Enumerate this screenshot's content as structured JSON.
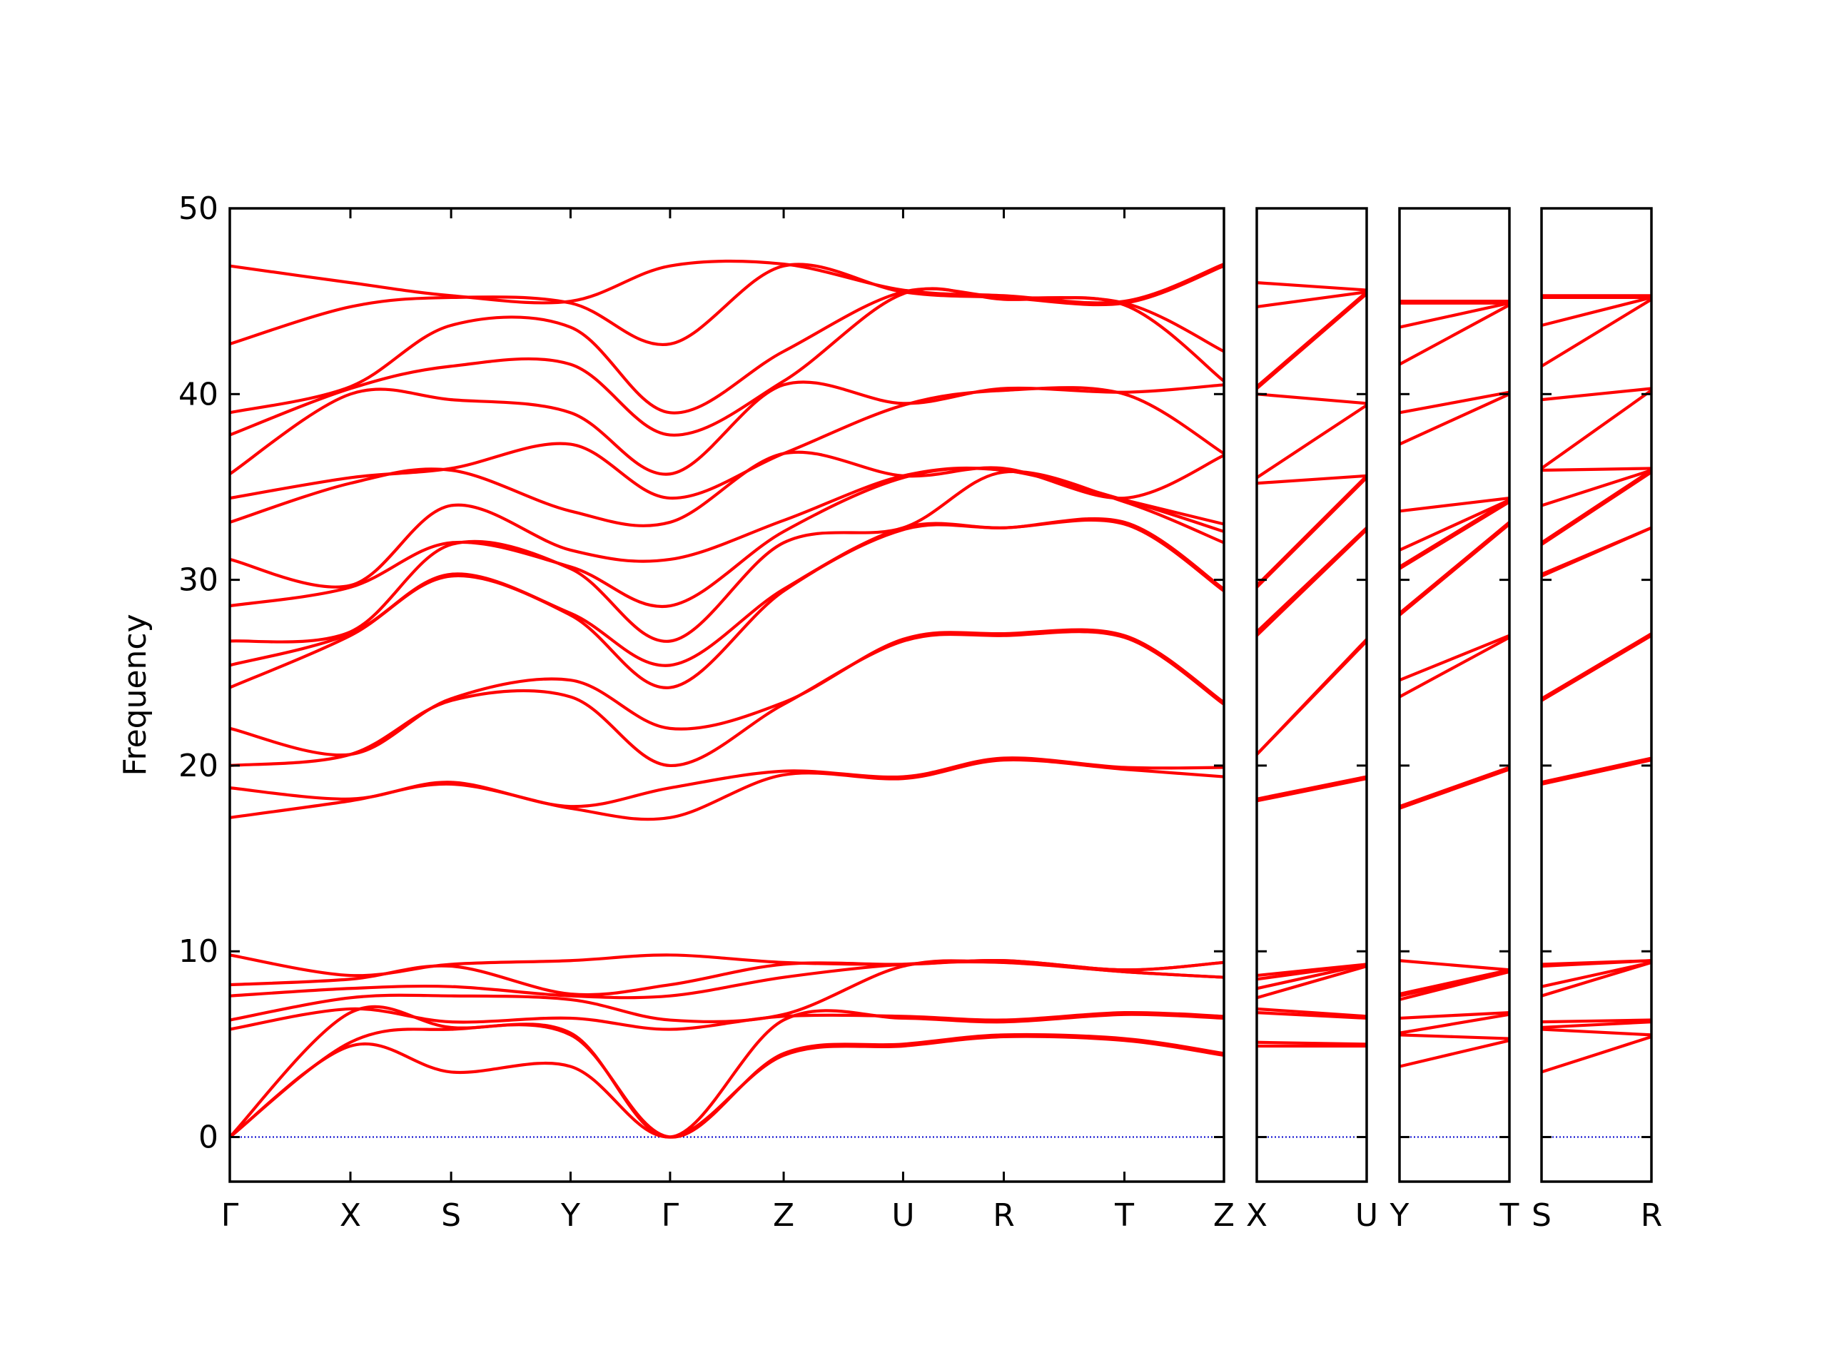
{
  "chart_data": [
    {
      "type": "line",
      "ylabel": "Frequency",
      "color": "#ff0000",
      "reference_line": {
        "value": 0,
        "color": "#0000cc"
      },
      "x": [
        0,
        1.03,
        1.89,
        2.91,
        3.76,
        4.73,
        5.75,
        6.61,
        7.64,
        8.49
      ],
      "xlim": [
        0,
        8.49
      ],
      "xticks": [
        {
          "value": 0,
          "label": "Γ"
        },
        {
          "value": 1.03,
          "label": "X"
        },
        {
          "value": 1.89,
          "label": "S"
        },
        {
          "value": 2.91,
          "label": "Y"
        },
        {
          "value": 3.76,
          "label": "Γ"
        },
        {
          "value": 4.73,
          "label": "Z"
        },
        {
          "value": 5.75,
          "label": "U"
        },
        {
          "value": 6.61,
          "label": "R"
        },
        {
          "value": 7.64,
          "label": "T"
        },
        {
          "value": 8.49,
          "label": "Z"
        }
      ],
      "ylim": [
        -2.4,
        50
      ],
      "yticks": [
        0,
        10,
        20,
        30,
        40,
        50
      ],
      "series": [
        {
          "values": [
            0,
            4.9,
            3.5,
            3.8,
            0,
            4.4,
            4.9,
            5.4,
            5.2,
            4.4
          ]
        },
        {
          "values": [
            0,
            5.1,
            5.8,
            5.5,
            0,
            4.5,
            5.0,
            5.5,
            5.3,
            4.5
          ]
        },
        {
          "values": [
            0,
            6.7,
            5.9,
            5.6,
            0,
            6.3,
            6.4,
            6.2,
            6.6,
            6.4
          ]
        },
        {
          "values": [
            5.8,
            6.9,
            6.2,
            6.4,
            5.8,
            6.5,
            6.5,
            6.3,
            6.7,
            6.5
          ]
        },
        {
          "values": [
            6.3,
            7.5,
            7.6,
            7.4,
            6.3,
            6.6,
            9.2,
            9.4,
            8.9,
            8.6
          ]
        },
        {
          "values": [
            7.6,
            8.0,
            8.1,
            7.6,
            7.6,
            8.6,
            9.3,
            9.4,
            8.9,
            8.6
          ]
        },
        {
          "values": [
            8.2,
            8.5,
            9.2,
            7.7,
            8.2,
            9.3,
            9.3,
            9.5,
            9.0,
            9.4
          ]
        },
        {
          "values": [
            9.8,
            8.7,
            9.3,
            9.5,
            9.8,
            9.4,
            9.3,
            9.5,
            9.0,
            9.4
          ]
        },
        {
          "values": [
            17.2,
            18.1,
            19.0,
            17.7,
            17.2,
            19.5,
            19.3,
            20.3,
            19.8,
            19.4
          ]
        },
        {
          "values": [
            18.8,
            18.2,
            19.1,
            17.8,
            18.8,
            19.7,
            19.4,
            20.4,
            19.9,
            19.9
          ]
        },
        {
          "values": [
            20.0,
            20.6,
            23.5,
            23.7,
            20.0,
            23.3,
            26.7,
            27.0,
            26.9,
            23.3
          ]
        },
        {
          "values": [
            22.0,
            20.6,
            23.6,
            24.6,
            22.0,
            23.4,
            26.8,
            27.1,
            27.0,
            23.4
          ]
        },
        {
          "values": [
            24.2,
            27.0,
            30.2,
            28.1,
            24.2,
            29.4,
            32.7,
            32.8,
            33.0,
            29.4
          ]
        },
        {
          "values": [
            25.4,
            27.1,
            30.3,
            28.2,
            25.4,
            29.5,
            32.8,
            32.8,
            33.1,
            29.5
          ]
        },
        {
          "values": [
            26.7,
            27.2,
            31.9,
            30.6,
            26.7,
            32.0,
            32.8,
            35.8,
            34.2,
            32.0
          ]
        },
        {
          "values": [
            28.6,
            29.6,
            32.0,
            30.7,
            28.6,
            32.6,
            35.5,
            35.9,
            34.3,
            32.6
          ]
        },
        {
          "values": [
            31.1,
            29.7,
            34.0,
            31.6,
            31.1,
            33.2,
            35.6,
            35.9,
            34.3,
            33.0
          ]
        },
        {
          "values": [
            33.1,
            35.2,
            35.9,
            33.7,
            33.1,
            36.8,
            35.6,
            36.0,
            34.4,
            36.7
          ]
        },
        {
          "values": [
            34.4,
            35.5,
            36.0,
            37.3,
            34.4,
            36.8,
            39.4,
            40.2,
            40.0,
            36.8
          ]
        },
        {
          "values": [
            35.7,
            40.0,
            39.7,
            39.0,
            35.7,
            40.5,
            39.5,
            40.3,
            40.1,
            40.5
          ]
        },
        {
          "values": [
            37.8,
            40.3,
            41.5,
            41.6,
            37.8,
            40.7,
            45.4,
            45.1,
            44.8,
            40.7
          ]
        },
        {
          "values": [
            39.0,
            40.4,
            43.7,
            43.6,
            39.0,
            42.3,
            45.5,
            45.2,
            44.9,
            42.3
          ]
        },
        {
          "values": [
            42.7,
            44.7,
            45.2,
            44.9,
            42.7,
            46.9,
            45.5,
            45.2,
            44.9,
            46.9
          ]
        },
        {
          "values": [
            46.9,
            46.0,
            45.3,
            45.0,
            46.9,
            47.0,
            45.6,
            45.3,
            45.0,
            47.0
          ]
        }
      ]
    },
    {
      "type": "line",
      "color": "#ff0000",
      "reference_line": {
        "value": 0,
        "color": "#0000cc"
      },
      "x": [
        0,
        1
      ],
      "xlim": [
        0,
        1
      ],
      "xticks": [
        {
          "value": 0,
          "label": "X"
        },
        {
          "value": 1,
          "label": "U"
        }
      ],
      "ylim": [
        -2.4,
        50
      ],
      "series": [
        {
          "values": [
            4.9,
            4.9
          ]
        },
        {
          "values": [
            5.1,
            5.0
          ]
        },
        {
          "values": [
            6.7,
            6.4
          ]
        },
        {
          "values": [
            6.9,
            6.5
          ]
        },
        {
          "values": [
            7.5,
            9.2
          ]
        },
        {
          "values": [
            8.0,
            9.3
          ]
        },
        {
          "values": [
            8.5,
            9.3
          ]
        },
        {
          "values": [
            8.7,
            9.3
          ]
        },
        {
          "values": [
            18.1,
            19.3
          ]
        },
        {
          "values": [
            18.2,
            19.4
          ]
        },
        {
          "values": [
            20.6,
            26.7
          ]
        },
        {
          "values": [
            20.6,
            26.8
          ]
        },
        {
          "values": [
            27.0,
            32.7
          ]
        },
        {
          "values": [
            27.1,
            32.8
          ]
        },
        {
          "values": [
            27.2,
            32.8
          ]
        },
        {
          "values": [
            29.6,
            35.5
          ]
        },
        {
          "values": [
            29.7,
            35.6
          ]
        },
        {
          "values": [
            35.2,
            35.6
          ]
        },
        {
          "values": [
            35.5,
            39.4
          ]
        },
        {
          "values": [
            40.0,
            39.5
          ]
        },
        {
          "values": [
            40.3,
            45.4
          ]
        },
        {
          "values": [
            40.4,
            45.5
          ]
        },
        {
          "values": [
            44.7,
            45.5
          ]
        },
        {
          "values": [
            46.0,
            45.6
          ]
        }
      ]
    },
    {
      "type": "line",
      "color": "#ff0000",
      "reference_line": {
        "value": 0,
        "color": "#0000cc"
      },
      "x": [
        0,
        1
      ],
      "xlim": [
        0,
        1
      ],
      "xticks": [
        {
          "value": 0,
          "label": "Y"
        },
        {
          "value": 1,
          "label": "T"
        }
      ],
      "ylim": [
        -2.4,
        50
      ],
      "series": [
        {
          "values": [
            3.8,
            5.2
          ]
        },
        {
          "values": [
            5.5,
            5.3
          ]
        },
        {
          "values": [
            5.6,
            6.6
          ]
        },
        {
          "values": [
            6.4,
            6.7
          ]
        },
        {
          "values": [
            7.4,
            8.9
          ]
        },
        {
          "values": [
            7.6,
            8.9
          ]
        },
        {
          "values": [
            7.7,
            9.0
          ]
        },
        {
          "values": [
            9.5,
            9.0
          ]
        },
        {
          "values": [
            17.7,
            19.8
          ]
        },
        {
          "values": [
            17.8,
            19.9
          ]
        },
        {
          "values": [
            23.7,
            26.9
          ]
        },
        {
          "values": [
            24.6,
            27.0
          ]
        },
        {
          "values": [
            28.1,
            33.0
          ]
        },
        {
          "values": [
            28.2,
            33.1
          ]
        },
        {
          "values": [
            30.6,
            34.2
          ]
        },
        {
          "values": [
            30.7,
            34.3
          ]
        },
        {
          "values": [
            31.6,
            34.3
          ]
        },
        {
          "values": [
            33.7,
            34.4
          ]
        },
        {
          "values": [
            37.3,
            40.0
          ]
        },
        {
          "values": [
            39.0,
            40.1
          ]
        },
        {
          "values": [
            41.6,
            44.8
          ]
        },
        {
          "values": [
            43.6,
            44.9
          ]
        },
        {
          "values": [
            44.9,
            44.9
          ]
        },
        {
          "values": [
            45.0,
            45.0
          ]
        }
      ]
    },
    {
      "type": "line",
      "color": "#ff0000",
      "reference_line": {
        "value": 0,
        "color": "#0000cc"
      },
      "x": [
        0,
        1
      ],
      "xlim": [
        0,
        1
      ],
      "xticks": [
        {
          "value": 0,
          "label": "S"
        },
        {
          "value": 1,
          "label": "R"
        }
      ],
      "ylim": [
        -2.4,
        50
      ],
      "series": [
        {
          "values": [
            3.5,
            5.4
          ]
        },
        {
          "values": [
            5.8,
            5.5
          ]
        },
        {
          "values": [
            5.9,
            6.2
          ]
        },
        {
          "values": [
            6.2,
            6.3
          ]
        },
        {
          "values": [
            7.6,
            9.4
          ]
        },
        {
          "values": [
            8.1,
            9.4
          ]
        },
        {
          "values": [
            9.2,
            9.5
          ]
        },
        {
          "values": [
            9.3,
            9.5
          ]
        },
        {
          "values": [
            19.0,
            20.3
          ]
        },
        {
          "values": [
            19.1,
            20.4
          ]
        },
        {
          "values": [
            23.5,
            27.0
          ]
        },
        {
          "values": [
            23.6,
            27.1
          ]
        },
        {
          "values": [
            30.2,
            32.8
          ]
        },
        {
          "values": [
            30.3,
            32.8
          ]
        },
        {
          "values": [
            31.9,
            35.8
          ]
        },
        {
          "values": [
            32.0,
            35.9
          ]
        },
        {
          "values": [
            34.0,
            35.9
          ]
        },
        {
          "values": [
            35.9,
            36.0
          ]
        },
        {
          "values": [
            36.0,
            40.2
          ]
        },
        {
          "values": [
            39.7,
            40.3
          ]
        },
        {
          "values": [
            41.5,
            45.1
          ]
        },
        {
          "values": [
            43.7,
            45.2
          ]
        },
        {
          "values": [
            45.2,
            45.2
          ]
        },
        {
          "values": [
            45.3,
            45.3
          ]
        }
      ]
    }
  ]
}
